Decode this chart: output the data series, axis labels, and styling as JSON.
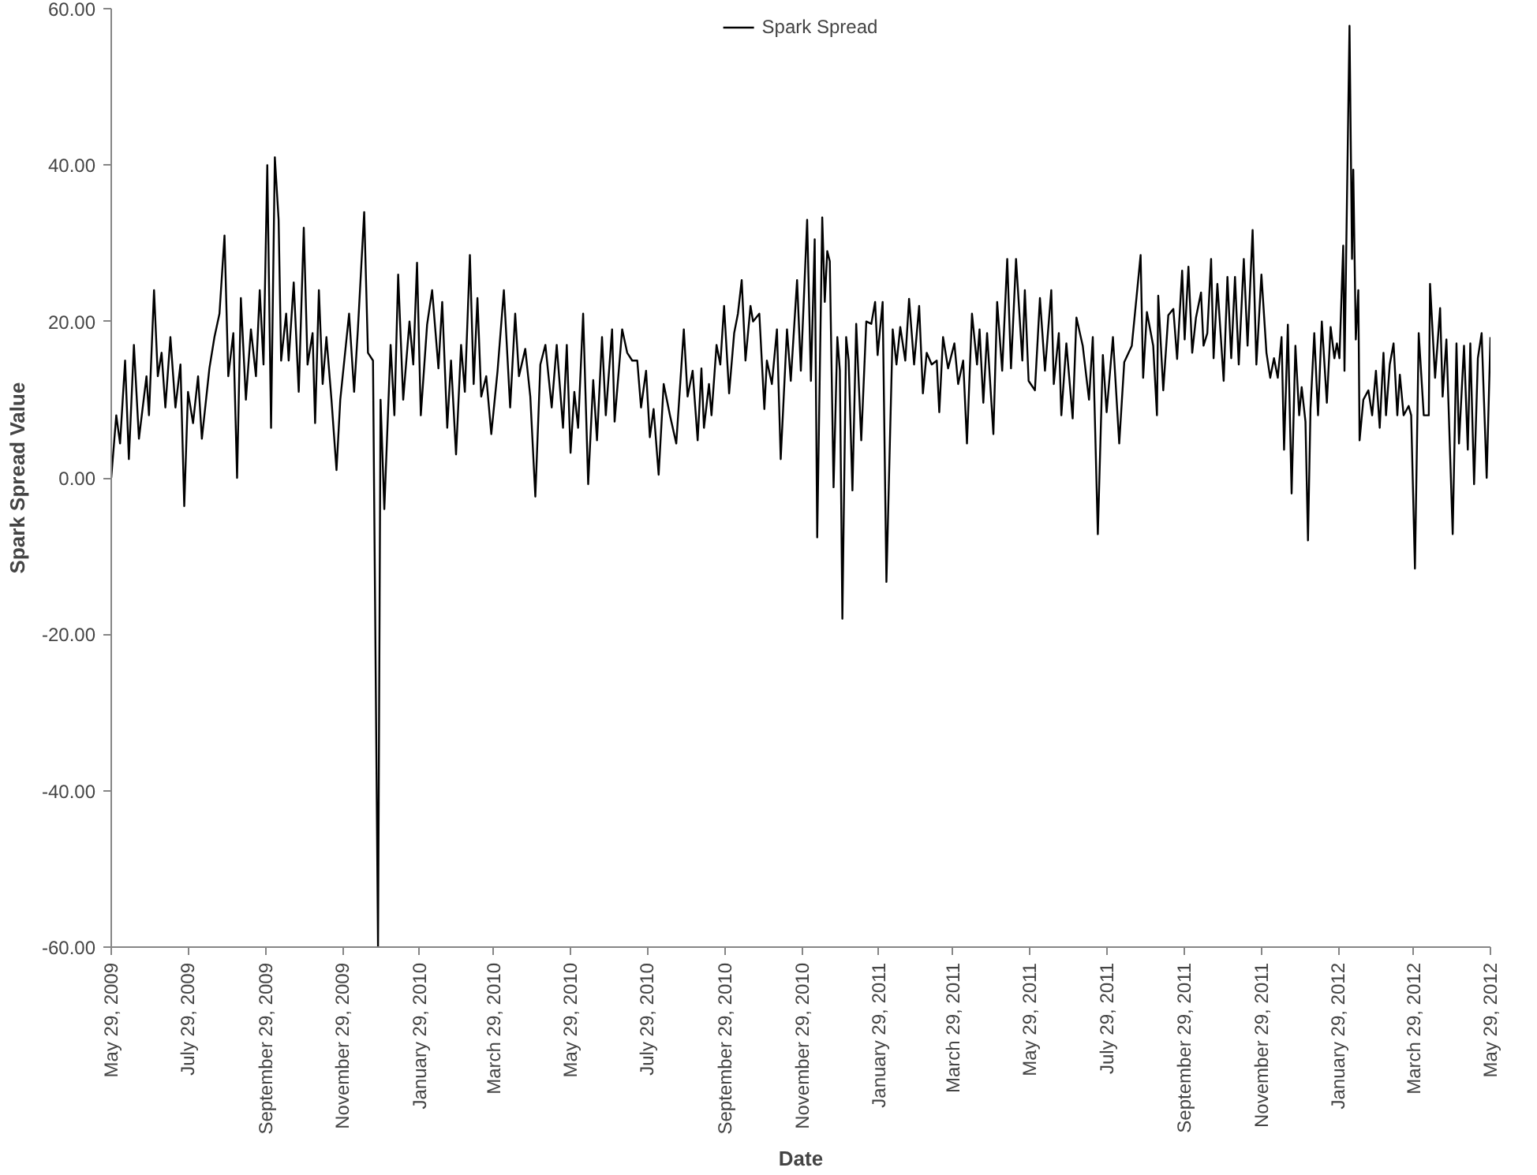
{
  "chart_data": {
    "type": "line",
    "xlabel": "Date",
    "ylabel": "Spark Spread Value",
    "legend": "top",
    "x": [
      "2009-05-29",
      "2009-06-02",
      "2009-06-05",
      "2009-06-09",
      "2009-06-12",
      "2009-06-16",
      "2009-06-20",
      "2009-06-26",
      "2009-06-28",
      "2009-07-02",
      "2009-07-05",
      "2009-07-08",
      "2009-07-11",
      "2009-07-15",
      "2009-07-19",
      "2009-07-23",
      "2009-07-26",
      "2009-07-29",
      "2009-08-02",
      "2009-08-06",
      "2009-08-09",
      "2009-08-15",
      "2009-08-19",
      "2009-08-23",
      "2009-08-27",
      "2009-08-30",
      "2009-09-03",
      "2009-09-06",
      "2009-09-09",
      "2009-09-13",
      "2009-09-17",
      "2009-09-21",
      "2009-09-24",
      "2009-09-27",
      "2009-09-30",
      "2009-10-03",
      "2009-10-06",
      "2009-10-09",
      "2009-10-11",
      "2009-10-15",
      "2009-10-17",
      "2009-10-21",
      "2009-10-25",
      "2009-10-29",
      "2009-11-01",
      "2009-11-05",
      "2009-11-07",
      "2009-11-10",
      "2009-11-13",
      "2009-11-16",
      "2009-11-20",
      "2009-11-24",
      "2009-11-27",
      "2009-12-04",
      "2009-12-08",
      "2009-12-11",
      "2009-12-16",
      "2009-12-19",
      "2009-12-23",
      "2009-12-27",
      "2009-12-29",
      "2010-01-01",
      "2010-01-06",
      "2010-01-09",
      "2010-01-12",
      "2010-01-16",
      "2010-01-21",
      "2010-01-24",
      "2010-01-27",
      "2010-01-30",
      "2010-02-04",
      "2010-02-08",
      "2010-02-13",
      "2010-02-16",
      "2010-02-20",
      "2010-02-23",
      "2010-02-27",
      "2010-03-03",
      "2010-03-06",
      "2010-03-10",
      "2010-03-13",
      "2010-03-16",
      "2010-03-19",
      "2010-03-23",
      "2010-03-27",
      "2010-04-01",
      "2010-04-06",
      "2010-04-11",
      "2010-04-15",
      "2010-04-18",
      "2010-04-23",
      "2010-04-27",
      "2010-05-01",
      "2010-05-05",
      "2010-05-09",
      "2010-05-14",
      "2010-05-18",
      "2010-05-23",
      "2010-05-26",
      "2010-05-29",
      "2010-06-01",
      "2010-06-04",
      "2010-06-08",
      "2010-06-12",
      "2010-06-16",
      "2010-06-19",
      "2010-06-23",
      "2010-06-26",
      "2010-07-01",
      "2010-07-03",
      "2010-07-09",
      "2010-07-13",
      "2010-07-17",
      "2010-07-21",
      "2010-07-24",
      "2010-07-28",
      "2010-07-31",
      "2010-08-03",
      "2010-08-07",
      "2010-08-11",
      "2010-08-16",
      "2010-08-21",
      "2010-08-27",
      "2010-08-30",
      "2010-09-03",
      "2010-09-07",
      "2010-09-10",
      "2010-09-12",
      "2010-09-16",
      "2010-09-18",
      "2010-09-22",
      "2010-09-25",
      "2010-09-28",
      "2010-10-02",
      "2010-10-06",
      "2010-10-09",
      "2010-10-12",
      "2010-10-15",
      "2010-10-19",
      "2010-10-21",
      "2010-10-26",
      "2010-10-30",
      "2010-11-01",
      "2010-11-05",
      "2010-11-09",
      "2010-11-12",
      "2010-11-17",
      "2010-11-20",
      "2010-11-25",
      "2010-11-28",
      "2010-12-03",
      "2010-12-06",
      "2010-12-09",
      "2010-12-11",
      "2010-12-15",
      "2010-12-17",
      "2010-12-19",
      "2010-12-21",
      "2010-12-24",
      "2010-12-27",
      "2010-12-29",
      "2010-12-31",
      "2011-01-03",
      "2011-01-05",
      "2011-01-08",
      "2011-01-11",
      "2011-01-15",
      "2011-01-19",
      "2011-01-23",
      "2011-01-26",
      "2011-01-28",
      "2011-02-01",
      "2011-02-04",
      "2011-02-09",
      "2011-02-12",
      "2011-02-15",
      "2011-02-19",
      "2011-02-22",
      "2011-02-26",
      "2011-03-02",
      "2011-03-05",
      "2011-03-08",
      "2011-03-12",
      "2011-03-16",
      "2011-03-18",
      "2011-03-21",
      "2011-03-25",
      "2011-03-30",
      "2011-04-02",
      "2011-04-06",
      "2011-04-09",
      "2011-04-13",
      "2011-04-17",
      "2011-04-19",
      "2011-04-22",
      "2011-04-25",
      "2011-04-30",
      "2011-05-03",
      "2011-05-07",
      "2011-05-11",
      "2011-05-14",
      "2011-05-18",
      "2011-05-23",
      "2011-05-25",
      "2011-05-28",
      "2011-06-02",
      "2011-06-06",
      "2011-06-10",
      "2011-06-15",
      "2011-06-17",
      "2011-06-21",
      "2011-06-23",
      "2011-06-27",
      "2011-07-02",
      "2011-07-05",
      "2011-07-10",
      "2011-07-15",
      "2011-07-18",
      "2011-07-22",
      "2011-07-26",
      "2011-07-29",
      "2011-08-03",
      "2011-08-08",
      "2011-08-12",
      "2011-08-18",
      "2011-08-25",
      "2011-08-27",
      "2011-08-30",
      "2011-09-04",
      "2011-09-07",
      "2011-09-08",
      "2011-09-12",
      "2011-09-16",
      "2011-09-20",
      "2011-09-23",
      "2011-09-27",
      "2011-09-29",
      "2011-10-02",
      "2011-10-05",
      "2011-10-08",
      "2011-10-12",
      "2011-10-14",
      "2011-10-17",
      "2011-10-20",
      "2011-10-22",
      "2011-10-25",
      "2011-10-30",
      "2011-11-02",
      "2011-11-05",
      "2011-11-08",
      "2011-11-11",
      "2011-11-15",
      "2011-11-18",
      "2011-11-22",
      "2011-11-25",
      "2011-11-29",
      "2011-12-03",
      "2011-12-06",
      "2011-12-09",
      "2011-12-12",
      "2011-12-15",
      "2011-12-17",
      "2011-12-20",
      "2011-12-23",
      "2011-12-26",
      "2011-12-29",
      "2011-12-31",
      "2012-01-03",
      "2012-01-05",
      "2012-01-07",
      "2012-01-10",
      "2012-01-13",
      "2012-01-16",
      "2012-01-20",
      "2012-01-23",
      "2012-01-26",
      "2012-01-28",
      "2012-01-30",
      "2012-02-02",
      "2012-02-03",
      "2012-02-07",
      "2012-02-09",
      "2012-02-10",
      "2012-02-12",
      "2012-02-14",
      "2012-02-15",
      "2012-02-18",
      "2012-02-22",
      "2012-02-25",
      "2012-02-28",
      "2012-03-02",
      "2012-03-05",
      "2012-03-07",
      "2012-03-10",
      "2012-03-13",
      "2012-03-16",
      "2012-03-18",
      "2012-03-21",
      "2012-03-25",
      "2012-03-27",
      "2012-03-30",
      "2012-04-02",
      "2012-04-06",
      "2012-04-10",
      "2012-04-11",
      "2012-04-15",
      "2012-04-19",
      "2012-04-21",
      "2012-04-24",
      "2012-04-29",
      "2012-05-02",
      "2012-05-04",
      "2012-05-08",
      "2012-05-11",
      "2012-05-13",
      "2012-05-16",
      "2012-05-19",
      "2012-05-22",
      "2012-05-26",
      "2012-05-29"
    ],
    "series": [
      {
        "name": "Spark Spread",
        "color": "#000000",
        "values": [
          0,
          8,
          4.4,
          15,
          2.4,
          17,
          5,
          13,
          8,
          24,
          13,
          16,
          9,
          18,
          9,
          14.5,
          -3.6,
          11,
          7,
          13,
          5,
          14,
          18,
          21,
          31,
          13,
          18.5,
          0,
          23,
          10,
          19,
          13,
          24,
          14.5,
          40,
          6.4,
          41,
          33,
          15,
          21,
          15,
          25,
          11,
          32,
          14.5,
          18.5,
          7,
          24,
          12,
          18,
          10,
          1,
          10,
          21,
          11,
          19,
          34,
          16,
          15,
          -60,
          10,
          -4,
          17,
          8,
          26,
          10,
          20,
          14.5,
          27.5,
          8,
          19.6,
          24,
          14,
          22.5,
          6.4,
          15,
          3,
          17,
          11,
          28.5,
          12,
          23,
          10.4,
          13,
          5.6,
          13.7,
          24,
          9,
          21,
          13,
          16.5,
          10.4,
          -2.4,
          14.5,
          17,
          9,
          17,
          6.4,
          17,
          3.2,
          11,
          6.4,
          21,
          -0.8,
          12.5,
          4.8,
          18,
          8,
          19,
          7.2,
          19,
          16,
          15,
          15,
          9,
          13.7,
          5.2,
          8.8,
          0.4,
          12,
          8,
          4.4,
          19,
          10.4,
          13.7,
          4.8,
          14,
          6.4,
          12,
          8,
          17,
          14.5,
          22,
          10.8,
          18.5,
          21,
          25.3,
          15,
          22,
          20,
          21,
          8.8,
          15,
          12,
          19,
          2.4,
          19,
          12.4,
          25.3,
          13.7,
          33,
          12.4,
          30.5,
          -7.6,
          33.3,
          22.5,
          29,
          27.7,
          -1.2,
          18,
          13.7,
          -18,
          18,
          15,
          -1.6,
          19.7,
          4.8,
          20,
          19.7,
          22.5,
          15.7,
          22.5,
          -13.3,
          19,
          14.5,
          19.3,
          15,
          22.9,
          14.5,
          22,
          10.8,
          16,
          14.5,
          15,
          8.4,
          18,
          14,
          17.2,
          12,
          15,
          4.4,
          21,
          14.5,
          19,
          9.6,
          18.5,
          5.6,
          22.5,
          13.7,
          28,
          14,
          28,
          15,
          24,
          12.4,
          11.2,
          23,
          13.7,
          24,
          12,
          18.5,
          8,
          17.2,
          7.6,
          20.5,
          16.9,
          10,
          18,
          -7.2,
          15.7,
          8.4,
          18,
          4.4,
          14.8,
          16.9,
          28.5,
          12.8,
          21.2,
          16.9,
          8,
          23.3,
          11.2,
          20.8,
          21.6,
          15.2,
          26.5,
          17.7,
          27,
          16,
          20.5,
          23.7,
          16.9,
          18.5,
          28,
          15.3,
          24.8,
          12.4,
          25.7,
          15.3,
          25.7,
          14.5,
          28,
          16.9,
          31.7,
          14.5,
          26,
          16,
          12.8,
          15.3,
          12.8,
          18,
          3.6,
          19.6,
          -2,
          16.9,
          8,
          11.6,
          7.2,
          -8,
          8.8,
          18.5,
          8,
          20,
          9.6,
          19.3,
          15.3,
          17.2,
          15.3,
          29.7,
          13.7,
          57.8,
          28,
          39.4,
          17.7,
          24,
          4.8,
          10,
          11.2,
          8,
          13.7,
          6.4,
          16,
          8,
          14.5,
          17.2,
          8,
          13.2,
          8,
          9.2,
          8,
          -11.6,
          18.5,
          8,
          8,
          24.8,
          12.8,
          21.7,
          10.4,
          17.7,
          -7.2,
          17.2,
          4.4,
          16.9,
          3.6,
          17.2,
          -0.8,
          15.3,
          18.5,
          0,
          18
        ]
      }
    ],
    "xlim": [
      "2009-05-29",
      "2012-05-29"
    ],
    "xticks": [
      {
        "value": "2009-05-29",
        "label": "May 29, 2009"
      },
      {
        "value": "2009-07-29",
        "label": "July 29, 2009"
      },
      {
        "value": "2009-09-29",
        "label": "September 29, 2009"
      },
      {
        "value": "2009-11-29",
        "label": "November 29, 2009"
      },
      {
        "value": "2010-01-29",
        "label": "January 29, 2010"
      },
      {
        "value": "2010-03-29",
        "label": "March 29, 2010"
      },
      {
        "value": "2010-05-29",
        "label": "May 29, 2010"
      },
      {
        "value": "2010-07-29",
        "label": "July 29, 2010"
      },
      {
        "value": "2010-09-29",
        "label": "September 29, 2010"
      },
      {
        "value": "2010-11-29",
        "label": "November 29, 2010"
      },
      {
        "value": "2011-01-29",
        "label": "January 29, 2011"
      },
      {
        "value": "2011-03-29",
        "label": "March 29, 2011"
      },
      {
        "value": "2011-05-29",
        "label": "May 29, 2011"
      },
      {
        "value": "2011-07-29",
        "label": "July 29, 2011"
      },
      {
        "value": "2011-09-29",
        "label": "September 29, 2011"
      },
      {
        "value": "2011-11-29",
        "label": "November 29, 2011"
      },
      {
        "value": "2012-01-29",
        "label": "January 29, 2012"
      },
      {
        "value": "2012-03-29",
        "label": "March 29, 2012"
      },
      {
        "value": "2012-05-29",
        "label": "May 29, 2012"
      }
    ],
    "ylim": [
      -60,
      60
    ],
    "yticks": [
      {
        "value": -60,
        "label": "-60.00"
      },
      {
        "value": -40,
        "label": "-40.00"
      },
      {
        "value": -20,
        "label": "-20.00"
      },
      {
        "value": 0,
        "label": "0.00"
      },
      {
        "value": 20,
        "label": "20.00"
      },
      {
        "value": 40,
        "label": "40.00"
      },
      {
        "value": 60,
        "label": "60.00"
      }
    ]
  }
}
